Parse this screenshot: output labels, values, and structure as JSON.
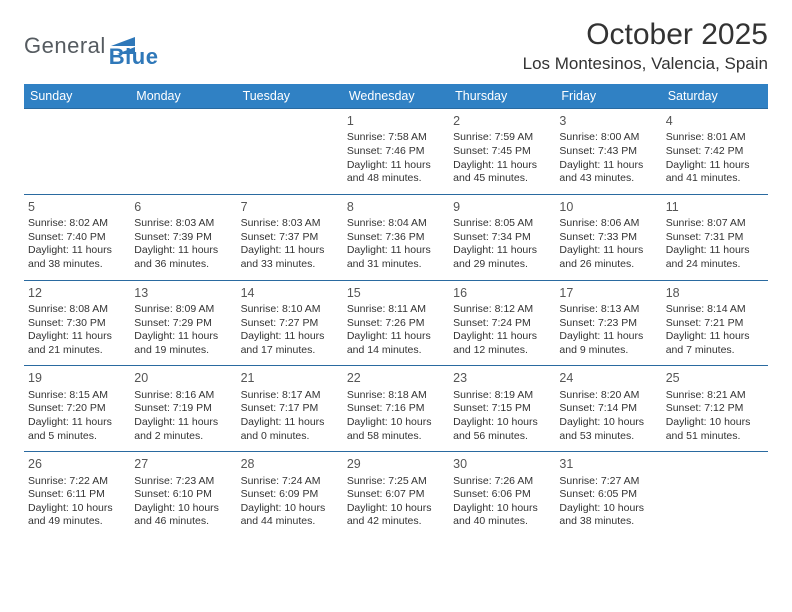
{
  "logo": {
    "word1": "General",
    "word2": "Blue"
  },
  "title": "October 2025",
  "location": "Los Montesinos, Valencia, Spain",
  "colors": {
    "header_bg": "#3081c4",
    "header_text": "#ffffff",
    "week_border": "#2a6aa0",
    "body_text": "#333333",
    "daynum_text": "#555555",
    "logo_gray": "#555b60",
    "logo_blue": "#2f78b9",
    "background": "#ffffff"
  },
  "day_names": [
    "Sunday",
    "Monday",
    "Tuesday",
    "Wednesday",
    "Thursday",
    "Friday",
    "Saturday"
  ],
  "weeks": [
    [
      {
        "n": "",
        "lines": []
      },
      {
        "n": "",
        "lines": []
      },
      {
        "n": "",
        "lines": []
      },
      {
        "n": "1",
        "lines": [
          "Sunrise: 7:58 AM",
          "Sunset: 7:46 PM",
          "Daylight: 11 hours and 48 minutes."
        ]
      },
      {
        "n": "2",
        "lines": [
          "Sunrise: 7:59 AM",
          "Sunset: 7:45 PM",
          "Daylight: 11 hours and 45 minutes."
        ]
      },
      {
        "n": "3",
        "lines": [
          "Sunrise: 8:00 AM",
          "Sunset: 7:43 PM",
          "Daylight: 11 hours and 43 minutes."
        ]
      },
      {
        "n": "4",
        "lines": [
          "Sunrise: 8:01 AM",
          "Sunset: 7:42 PM",
          "Daylight: 11 hours and 41 minutes."
        ]
      }
    ],
    [
      {
        "n": "5",
        "lines": [
          "Sunrise: 8:02 AM",
          "Sunset: 7:40 PM",
          "Daylight: 11 hours and 38 minutes."
        ]
      },
      {
        "n": "6",
        "lines": [
          "Sunrise: 8:03 AM",
          "Sunset: 7:39 PM",
          "Daylight: 11 hours and 36 minutes."
        ]
      },
      {
        "n": "7",
        "lines": [
          "Sunrise: 8:03 AM",
          "Sunset: 7:37 PM",
          "Daylight: 11 hours and 33 minutes."
        ]
      },
      {
        "n": "8",
        "lines": [
          "Sunrise: 8:04 AM",
          "Sunset: 7:36 PM",
          "Daylight: 11 hours and 31 minutes."
        ]
      },
      {
        "n": "9",
        "lines": [
          "Sunrise: 8:05 AM",
          "Sunset: 7:34 PM",
          "Daylight: 11 hours and 29 minutes."
        ]
      },
      {
        "n": "10",
        "lines": [
          "Sunrise: 8:06 AM",
          "Sunset: 7:33 PM",
          "Daylight: 11 hours and 26 minutes."
        ]
      },
      {
        "n": "11",
        "lines": [
          "Sunrise: 8:07 AM",
          "Sunset: 7:31 PM",
          "Daylight: 11 hours and 24 minutes."
        ]
      }
    ],
    [
      {
        "n": "12",
        "lines": [
          "Sunrise: 8:08 AM",
          "Sunset: 7:30 PM",
          "Daylight: 11 hours and 21 minutes."
        ]
      },
      {
        "n": "13",
        "lines": [
          "Sunrise: 8:09 AM",
          "Sunset: 7:29 PM",
          "Daylight: 11 hours and 19 minutes."
        ]
      },
      {
        "n": "14",
        "lines": [
          "Sunrise: 8:10 AM",
          "Sunset: 7:27 PM",
          "Daylight: 11 hours and 17 minutes."
        ]
      },
      {
        "n": "15",
        "lines": [
          "Sunrise: 8:11 AM",
          "Sunset: 7:26 PM",
          "Daylight: 11 hours and 14 minutes."
        ]
      },
      {
        "n": "16",
        "lines": [
          "Sunrise: 8:12 AM",
          "Sunset: 7:24 PM",
          "Daylight: 11 hours and 12 minutes."
        ]
      },
      {
        "n": "17",
        "lines": [
          "Sunrise: 8:13 AM",
          "Sunset: 7:23 PM",
          "Daylight: 11 hours and 9 minutes."
        ]
      },
      {
        "n": "18",
        "lines": [
          "Sunrise: 8:14 AM",
          "Sunset: 7:21 PM",
          "Daylight: 11 hours and 7 minutes."
        ]
      }
    ],
    [
      {
        "n": "19",
        "lines": [
          "Sunrise: 8:15 AM",
          "Sunset: 7:20 PM",
          "Daylight: 11 hours and 5 minutes."
        ]
      },
      {
        "n": "20",
        "lines": [
          "Sunrise: 8:16 AM",
          "Sunset: 7:19 PM",
          "Daylight: 11 hours and 2 minutes."
        ]
      },
      {
        "n": "21",
        "lines": [
          "Sunrise: 8:17 AM",
          "Sunset: 7:17 PM",
          "Daylight: 11 hours and 0 minutes."
        ]
      },
      {
        "n": "22",
        "lines": [
          "Sunrise: 8:18 AM",
          "Sunset: 7:16 PM",
          "Daylight: 10 hours and 58 minutes."
        ]
      },
      {
        "n": "23",
        "lines": [
          "Sunrise: 8:19 AM",
          "Sunset: 7:15 PM",
          "Daylight: 10 hours and 56 minutes."
        ]
      },
      {
        "n": "24",
        "lines": [
          "Sunrise: 8:20 AM",
          "Sunset: 7:14 PM",
          "Daylight: 10 hours and 53 minutes."
        ]
      },
      {
        "n": "25",
        "lines": [
          "Sunrise: 8:21 AM",
          "Sunset: 7:12 PM",
          "Daylight: 10 hours and 51 minutes."
        ]
      }
    ],
    [
      {
        "n": "26",
        "lines": [
          "Sunrise: 7:22 AM",
          "Sunset: 6:11 PM",
          "Daylight: 10 hours and 49 minutes."
        ]
      },
      {
        "n": "27",
        "lines": [
          "Sunrise: 7:23 AM",
          "Sunset: 6:10 PM",
          "Daylight: 10 hours and 46 minutes."
        ]
      },
      {
        "n": "28",
        "lines": [
          "Sunrise: 7:24 AM",
          "Sunset: 6:09 PM",
          "Daylight: 10 hours and 44 minutes."
        ]
      },
      {
        "n": "29",
        "lines": [
          "Sunrise: 7:25 AM",
          "Sunset: 6:07 PM",
          "Daylight: 10 hours and 42 minutes."
        ]
      },
      {
        "n": "30",
        "lines": [
          "Sunrise: 7:26 AM",
          "Sunset: 6:06 PM",
          "Daylight: 10 hours and 40 minutes."
        ]
      },
      {
        "n": "31",
        "lines": [
          "Sunrise: 7:27 AM",
          "Sunset: 6:05 PM",
          "Daylight: 10 hours and 38 minutes."
        ]
      },
      {
        "n": "",
        "lines": []
      }
    ]
  ]
}
